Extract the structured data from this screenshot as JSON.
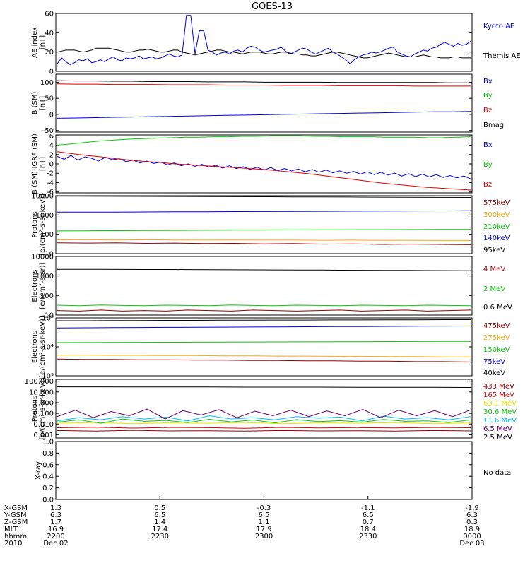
{
  "title": "GOES-13",
  "colors": {
    "black": "#000000",
    "blue": "#0000dd",
    "green": "#00cc00",
    "red": "#dd0000",
    "darkred": "#990000",
    "orange": "#ffa500",
    "yellow": "#e6e600",
    "cyan": "#00bbff",
    "purple": "#660066",
    "grid": "#000000"
  },
  "chart_data": [
    {
      "type": "line",
      "ylabel": "AE index [nT]",
      "ylim": [
        0,
        60
      ],
      "yscale": "linear",
      "yticks": [
        "0",
        "20",
        "40",
        "60"
      ],
      "series": [
        {
          "name": "Kyoto AE",
          "color": "blue",
          "values": [
            8,
            14,
            10,
            7,
            9,
            12,
            11,
            13,
            9,
            10,
            12,
            10,
            13,
            15,
            12,
            11,
            14,
            13,
            14,
            16,
            13,
            14,
            15,
            13,
            14,
            16,
            18,
            16,
            15,
            17,
            58,
            58,
            18,
            42,
            42,
            22,
            20,
            17,
            19,
            20,
            18,
            21,
            22,
            20,
            24,
            26,
            25,
            22,
            20,
            21,
            22,
            23,
            25,
            21,
            18,
            20,
            22,
            24,
            23,
            20,
            18,
            20,
            22,
            24,
            20,
            18,
            15,
            12,
            8,
            12,
            15,
            17,
            18,
            20,
            19,
            20,
            22,
            24,
            25,
            20,
            18,
            16,
            15,
            18,
            20,
            22,
            21,
            24,
            25,
            28,
            30,
            28,
            26,
            29,
            27,
            28,
            31
          ]
        },
        {
          "name": "Themis AE",
          "color": "black",
          "values": [
            20,
            21,
            22,
            22,
            22,
            21,
            20,
            21,
            22,
            24,
            24,
            24,
            24,
            23,
            22,
            21,
            20,
            20,
            21,
            22,
            22,
            23,
            22,
            21,
            20,
            20,
            21,
            22,
            22,
            20,
            19,
            18,
            17,
            18,
            19,
            20,
            21,
            22,
            22,
            21,
            20,
            20,
            19,
            18,
            19,
            20,
            20,
            20,
            19,
            18,
            18,
            19,
            20,
            20,
            19,
            18,
            18,
            17,
            17,
            16,
            16,
            17,
            18,
            19,
            20,
            20,
            19,
            18,
            17,
            16,
            15,
            14,
            14,
            15,
            16,
            17,
            18,
            19,
            18,
            17,
            16,
            15,
            15,
            15,
            16,
            17,
            16,
            15,
            15,
            14,
            14,
            14,
            15,
            15,
            14,
            14,
            14
          ]
        }
      ],
      "legend": [
        "Kyoto AE",
        "Themis AE"
      ]
    },
    {
      "type": "line",
      "ylabel": "B (SM) [nT]",
      "ylim": [
        -55,
        125
      ],
      "yscale": "linear",
      "yticks": [
        "-50",
        "0",
        "50",
        "100"
      ],
      "series": [
        {
          "name": "Bx",
          "color": "blue",
          "values": [
            -12,
            -11,
            -10,
            -9,
            -8,
            -7,
            -6,
            -5,
            -4,
            -3,
            -2,
            -1,
            0,
            1,
            2,
            3,
            4,
            5,
            6,
            7,
            8,
            8,
            9
          ]
        },
        {
          "name": "By",
          "color": "green",
          "values": []
        },
        {
          "name": "Bz",
          "color": "red",
          "values": [
            95,
            94,
            94,
            93,
            93,
            93,
            92,
            92,
            92,
            91,
            91,
            91,
            90,
            90,
            90,
            89,
            89,
            89,
            89,
            88,
            88,
            88,
            88
          ]
        },
        {
          "name": "Bmag",
          "color": "black",
          "values": [
            105,
            104,
            104,
            103,
            103,
            102,
            102,
            102,
            101,
            101,
            101,
            100,
            100,
            100,
            100,
            99,
            99,
            99,
            99,
            99,
            99,
            98,
            98
          ]
        }
      ],
      "legend": [
        "Bx",
        "By",
        "Bz",
        "Bmag"
      ]
    },
    {
      "type": "line",
      "ylabel": "B (SM)-IGRF (SM) [nT]",
      "ylim": [
        -6.2,
        6.2
      ],
      "yscale": "linear",
      "yticks": [
        "-6",
        "-4",
        "-2",
        "0",
        "2",
        "4",
        "6"
      ],
      "series": [
        {
          "name": "Bx",
          "color": "blue",
          "values": [
            1.6,
            1.0,
            1.8,
            0.8,
            1.5,
            1.2,
            0.6,
            1.4,
            0.9,
            1.1,
            0.5,
            0.8,
            0.2,
            0.6,
            0.1,
            0.4,
            -0.2,
            0.2,
            -0.4,
            0.0,
            -0.5,
            -0.1,
            -0.7,
            -0.3,
            -0.9,
            -0.4,
            -1.0,
            -0.6,
            -1.2,
            -0.7,
            -1.3,
            -0.8,
            -1.4,
            -1.0,
            -1.5,
            -1.1,
            -1.7,
            -1.2,
            -1.8,
            -1.3,
            -1.9,
            -1.5,
            -2.0,
            -1.6,
            -2.2,
            -1.7,
            -2.3,
            -1.8,
            -2.4,
            -2.0,
            -2.6,
            -2.1,
            -2.7,
            -2.2,
            -2.8,
            -2.3,
            -2.9,
            -2.5,
            -3.0,
            -2.6,
            -3.2
          ]
        },
        {
          "name": "By",
          "color": "green",
          "values": [
            4.0,
            4.3,
            4.6,
            4.9,
            5.1,
            5.3,
            5.4,
            5.5,
            5.6,
            5.7,
            5.7,
            5.8,
            5.8,
            5.9,
            5.9,
            6.0,
            6.0,
            6.0,
            5.9,
            5.9,
            5.8,
            5.8,
            5.8,
            5.7,
            5.7,
            5.7,
            5.6,
            5.6,
            5.7,
            5.8
          ]
        },
        {
          "name": "Bz",
          "color": "red",
          "values": [
            2.6,
            2.2,
            1.8,
            1.5,
            1.1,
            0.8,
            0.5,
            0.3,
            0.0,
            -0.2,
            -0.4,
            -0.6,
            -0.8,
            -1.0,
            -1.2,
            -1.5,
            -1.8,
            -2.1,
            -2.5,
            -2.9,
            -3.3,
            -3.7,
            -4.1,
            -4.4,
            -4.7,
            -5.0,
            -5.2,
            -5.4,
            -5.6
          ]
        }
      ],
      "legend": [
        "Bx",
        "By",
        "Bz"
      ]
    },
    {
      "type": "line",
      "ylabel": "Protons [p/(cm²-s-sr-keV)]",
      "ylim": [
        10,
        10000
      ],
      "yscale": "log",
      "yticks": [
        "10",
        "100",
        "1000",
        "10000"
      ],
      "series": [
        {
          "name": "575keV",
          "color": "darkred",
          "values": [
            36,
            35,
            36,
            34,
            35,
            33,
            34,
            32,
            33,
            31,
            32,
            30,
            31,
            30,
            29
          ]
        },
        {
          "name": "300keV",
          "color": "orange",
          "values": [
            52,
            52,
            51,
            52,
            51,
            50,
            51,
            50,
            50,
            49,
            50,
            49,
            49,
            48,
            48
          ]
        },
        {
          "name": "210keV",
          "color": "green",
          "values": [
            150,
            152,
            155,
            158,
            160,
            162,
            164,
            166,
            168,
            170,
            172,
            174,
            176,
            178,
            180
          ]
        },
        {
          "name": "140keV",
          "color": "blue",
          "values": [
            1400,
            1400,
            1420,
            1440,
            1460,
            1480,
            1500,
            1520,
            1540,
            1560,
            1580,
            1600,
            1620,
            1640,
            1660
          ]
        },
        {
          "name": "95keV",
          "color": "black",
          "values": [
            9500,
            9400,
            9300,
            9200,
            9100,
            9000,
            8900,
            8800,
            8700,
            8600,
            8500,
            8400,
            8300,
            8200,
            8100
          ]
        }
      ],
      "legend": [
        "575keV",
        "300keV",
        "210keV",
        "140keV",
        "95keV"
      ]
    },
    {
      "type": "line",
      "ylabel": "Electrons [e/(cm²-s-sr)]",
      "ylim": [
        10,
        10000
      ],
      "yscale": "log",
      "yticks": [
        "10",
        "100",
        "1000",
        "10000"
      ],
      "series": [
        {
          "name": "4 MeV",
          "color": "darkred",
          "values": [
            17,
            16,
            18,
            16,
            17,
            16,
            18,
            17,
            16,
            18,
            17,
            16,
            17,
            18,
            16,
            17,
            18,
            16,
            17,
            18
          ]
        },
        {
          "name": "2 MeV",
          "color": "green",
          "values": [
            32,
            30,
            33,
            31,
            30,
            32,
            31,
            30,
            33,
            31,
            30,
            32,
            31,
            30,
            32,
            31,
            30,
            32,
            31,
            30
          ]
        },
        {
          "name": "0.6 MeV",
          "color": "black",
          "values": [
            2200,
            2200,
            2180,
            2160,
            2150,
            2140,
            2120,
            2100,
            2080,
            2060,
            2040,
            2020,
            2000,
            1980,
            1960,
            1940,
            1920,
            1900,
            1880,
            1860
          ]
        }
      ],
      "legend": [
        "4 MeV",
        "2 MeV",
        "0.6 MeV"
      ]
    },
    {
      "type": "line",
      "ylabel": "Electrons [e/(cm²-s-sr-keV)]",
      "ylim": [
        1000,
        100000
      ],
      "yscale": "log",
      "yticks": [
        "10³",
        "10⁴",
        "10⁵"
      ],
      "tick_values": [
        1000,
        10000,
        100000
      ],
      "series": [
        {
          "name": "475keV",
          "color": "darkred",
          "values": [
            3800,
            3700,
            3700,
            3600,
            3600,
            3500,
            3500,
            3400,
            3400,
            3300,
            3300,
            3200,
            3200,
            3100,
            3100,
            3000
          ]
        },
        {
          "name": "275keV",
          "color": "orange",
          "values": [
            5200,
            5200,
            5100,
            5100,
            5000,
            5000,
            4900,
            4900,
            4800,
            4800,
            4700,
            4700,
            4600,
            4600,
            4500,
            4500
          ]
        },
        {
          "name": "150keV",
          "color": "green",
          "values": [
            14000,
            14100,
            14200,
            14300,
            14400,
            14500,
            14600,
            14700,
            14800,
            14900,
            15000,
            15100,
            15200,
            15300,
            15400,
            15500
          ]
        },
        {
          "name": "75keV",
          "color": "blue",
          "values": [
            45000,
            45500,
            46000,
            46500,
            47000,
            47500,
            48000,
            48500,
            49000,
            49500,
            50000,
            50500,
            51000,
            51500,
            52000,
            52500
          ]
        },
        {
          "name": "40keV",
          "color": "black",
          "values": [
            80000,
            80000,
            81000,
            81000,
            82000,
            82000,
            83000,
            83000,
            84000,
            84000,
            85000,
            85000,
            86000,
            86000,
            87000,
            87000
          ]
        }
      ],
      "legend": [
        "475keV",
        "275keV",
        "150keV",
        "75keV",
        "40keV"
      ]
    },
    {
      "type": "line",
      "ylabel": "Protons [p/(cm²-s-sr-keV)]",
      "ylim": [
        0.0005,
        150
      ],
      "yscale": "log",
      "yticks": [
        "0.001",
        "0.010",
        "0.100",
        "1.000",
        "10.000",
        "100.000"
      ],
      "tick_values": [
        0.001,
        0.01,
        0.1,
        1,
        10,
        100
      ],
      "series": [
        {
          "name": "433 MeV",
          "color": "darkred",
          "values": [
            0.0025,
            0.0022,
            0.0026,
            0.0023,
            0.0024,
            0.0022,
            0.0025,
            0.0023,
            0.0024,
            0.0022,
            0.0025,
            0.0023
          ]
        },
        {
          "name": "165 MeV",
          "color": "red",
          "values": [
            0.0045,
            0.005,
            0.0042,
            0.0048,
            0.0046,
            0.0041,
            0.0049,
            0.0044,
            0.0047,
            0.0043,
            0.0048,
            0.0045
          ]
        },
        {
          "name": "63.1 MeV",
          "color": "yellow",
          "values": [
            0.012,
            0.014,
            0.011,
            0.013,
            0.012,
            0.014,
            0.011,
            0.013,
            0.012,
            0.014,
            0.011,
            0.013
          ]
        },
        {
          "name": "30.6 MeV",
          "color": "green",
          "values": [
            0.015,
            0.025,
            0.012,
            0.03,
            0.018,
            0.022,
            0.014,
            0.028,
            0.016,
            0.024,
            0.013,
            0.026,
            0.017,
            0.021,
            0.015,
            0.027,
            0.018,
            0.02,
            0.014,
            0.025
          ]
        },
        {
          "name": "11.6 MeV",
          "color": "cyan",
          "values": [
            0.02,
            0.04,
            0.025,
            0.05,
            0.03,
            0.045,
            0.02,
            0.06,
            0.03,
            0.04,
            0.025,
            0.05,
            0.035,
            0.045,
            0.02,
            0.055,
            0.03,
            0.04,
            0.025,
            0.05
          ]
        },
        {
          "name": "6.5 MeV",
          "color": "purple",
          "values": [
            0.05,
            0.2,
            0.04,
            0.15,
            0.06,
            0.25,
            0.03,
            0.18,
            0.07,
            0.22,
            0.04,
            0.16,
            0.06,
            0.2,
            0.05,
            0.17,
            0.06,
            0.23,
            0.04,
            0.2,
            0.06,
            0.18,
            0.05,
            0.21
          ]
        },
        {
          "name": "2.5 MeV",
          "color": "black",
          "values": [
            30,
            30,
            29,
            29,
            29,
            28,
            28,
            28,
            27,
            27,
            27,
            26
          ]
        }
      ],
      "legend": [
        "433 MeV",
        "165 MeV",
        "63.1 MeV",
        "30.6 MeV",
        "11.6 MeV",
        "6.5 MeV",
        "2.5 MeV"
      ]
    },
    {
      "type": "line",
      "ylabel": "X-ray",
      "ylim": [
        0,
        1
      ],
      "yscale": "linear",
      "yticks": [
        "0.0",
        "0.2",
        "0.4",
        "0.6",
        "0.8",
        "1.0"
      ],
      "tick_values": [
        0,
        0.2,
        0.4,
        0.6,
        0.8,
        1.0
      ],
      "series": [],
      "legend": [
        "No data"
      ]
    }
  ],
  "x_axis": {
    "rows": [
      "X-GSM",
      "Y-GSM",
      "Z-GSM",
      "MLT",
      "hhmm",
      "2010"
    ],
    "columns": [
      {
        "values": [
          "1.3",
          "6.3",
          "1.7",
          "16.9",
          "2200",
          "Dec 02"
        ]
      },
      {
        "values": [
          "0.5",
          "6.5",
          "1.4",
          "17.4",
          "2230",
          ""
        ]
      },
      {
        "values": [
          "-0.3",
          "6.5",
          "1.1",
          "17.9",
          "2300",
          ""
        ]
      },
      {
        "values": [
          "-1.1",
          "6.5",
          "0.7",
          "18.4",
          "2330",
          ""
        ]
      },
      {
        "values": [
          "-1.9",
          "6.3",
          "0.3",
          "18.9",
          "0000",
          "Dec 03"
        ]
      }
    ]
  }
}
